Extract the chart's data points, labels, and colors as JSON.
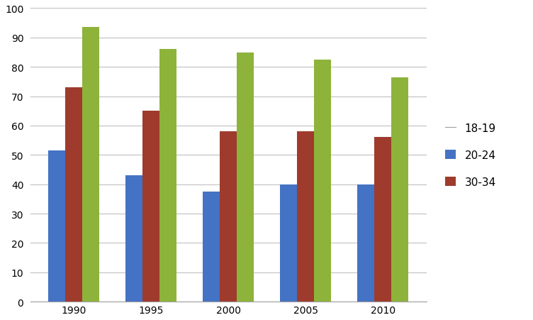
{
  "categories": [
    "1990",
    "1995",
    "2000",
    "2005",
    "2010"
  ],
  "series": {
    "18-19": [
      51.5,
      43,
      37.5,
      40,
      40
    ],
    "20-24": [
      73,
      65,
      58,
      58,
      56
    ],
    "30-34": [
      93.5,
      86,
      85,
      82.5,
      76.5
    ]
  },
  "colors": {
    "18-19": "#4472C4",
    "20-24": "#9E3B2C",
    "30-34": "#8DB33A"
  },
  "ylim": [
    0,
    100
  ],
  "yticks": [
    0,
    10,
    20,
    30,
    40,
    50,
    60,
    70,
    80,
    90,
    100
  ],
  "legend_labels": [
    "18-19",
    "20-24",
    "30-34"
  ],
  "bar_width": 0.22,
  "background_color": "#ffffff",
  "grid_color": "#c0c0c0",
  "figsize": [
    7.52,
    4.52
  ],
  "dpi": 100
}
